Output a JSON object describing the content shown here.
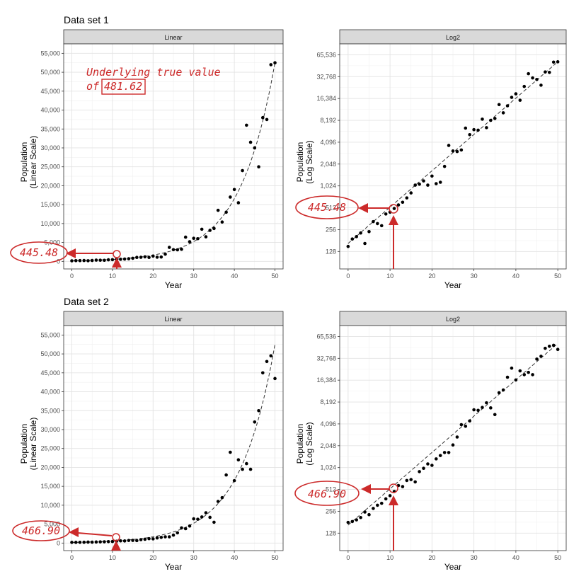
{
  "sections": [
    {
      "title": "Data set 1"
    },
    {
      "title": "Data set 2"
    }
  ],
  "annotations": {
    "note_line1": "Underlying true value",
    "note_line2_prefix": "of",
    "note_value": "481.62",
    "ds1_estimate": "445.48",
    "ds2_estimate": "466.90",
    "color": "#cc2a2a"
  },
  "chart_data": [
    {
      "type": "scatter",
      "dataset": "Data set 1",
      "facet": "Linear",
      "xlabel": "Year",
      "ylabel": [
        "Population",
        "(Linear Scale)"
      ],
      "xlim": [
        -2,
        52
      ],
      "ylim": [
        -2000,
        57500
      ],
      "scale": "linear",
      "xticks": [
        0,
        10,
        20,
        30,
        40,
        50
      ],
      "yticks": [
        0,
        5000,
        10000,
        15000,
        20000,
        25000,
        30000,
        35000,
        40000,
        45000,
        50000,
        55000
      ],
      "ytick_labels": [
        "0",
        "5,000",
        "10,000",
        "15,000",
        "20,000",
        "25,000",
        "30,000",
        "35,000",
        "40,000",
        "45,000",
        "50,000",
        "55,000"
      ],
      "trend": {
        "style": "dashed",
        "start": 165,
        "end": 52500
      },
      "grid": true,
      "x": [
        0,
        1,
        2,
        3,
        4,
        5,
        6,
        7,
        8,
        9,
        10,
        11,
        12,
        13,
        14,
        15,
        16,
        17,
        18,
        19,
        20,
        21,
        22,
        23,
        24,
        25,
        26,
        27,
        28,
        29,
        30,
        31,
        32,
        33,
        34,
        35,
        36,
        37,
        38,
        39,
        40,
        41,
        42,
        43,
        44,
        45,
        46,
        47,
        48,
        49,
        50
      ],
      "y": [
        150,
        190,
        205,
        230,
        165,
        240,
        330,
        310,
        290,
        420,
        445,
        500,
        560,
        610,
        700,
        820,
        1050,
        1080,
        1200,
        1050,
        1400,
        1100,
        1150,
        1900,
        3700,
        3100,
        3050,
        3200,
        6400,
        5200,
        6100,
        6000,
        8500,
        6500,
        8200,
        8700,
        13500,
        10400,
        13000,
        17000,
        19000,
        15500,
        24000,
        36000,
        31500,
        30000,
        25000,
        38000,
        37500,
        52000,
        52500
      ]
    },
    {
      "type": "scatter",
      "dataset": "Data set 1",
      "facet": "Log2",
      "xlabel": "Year",
      "ylabel": [
        "Population",
        "(Log Scale)"
      ],
      "xlim": [
        -2,
        52
      ],
      "scale": "log2",
      "ylim_log2": [
        6.2,
        16.5
      ],
      "xticks": [
        0,
        10,
        20,
        30,
        40,
        50
      ],
      "yticks": [
        128,
        256,
        512,
        1024,
        2048,
        4096,
        8192,
        16384,
        32768,
        65536
      ],
      "ytick_labels": [
        "128",
        "256",
        "512",
        "1,024",
        "2,048",
        "4,096",
        "8,192",
        "16,384",
        "32,768",
        "65,536"
      ],
      "trend": {
        "style": "dashed",
        "start": 165,
        "end": 52500
      },
      "grid": true,
      "x": [
        0,
        1,
        2,
        3,
        4,
        5,
        6,
        7,
        8,
        9,
        10,
        11,
        12,
        13,
        14,
        15,
        16,
        17,
        18,
        19,
        20,
        21,
        22,
        23,
        24,
        25,
        26,
        27,
        28,
        29,
        30,
        31,
        32,
        33,
        34,
        35,
        36,
        37,
        38,
        39,
        40,
        41,
        42,
        43,
        44,
        45,
        46,
        47,
        48,
        49,
        50
      ],
      "y": [
        150,
        190,
        205,
        230,
        165,
        240,
        330,
        310,
        290,
        420,
        445,
        500,
        560,
        610,
        700,
        820,
        1050,
        1080,
        1200,
        1050,
        1400,
        1100,
        1150,
        1900,
        3700,
        3100,
        3050,
        3200,
        6400,
        5200,
        6100,
        6000,
        8500,
        6500,
        8200,
        8700,
        13500,
        10400,
        13000,
        17000,
        19000,
        15500,
        24000,
        36000,
        31500,
        30000,
        25000,
        38000,
        37500,
        52000,
        52500
      ]
    },
    {
      "type": "scatter",
      "dataset": "Data set 2",
      "facet": "Linear",
      "xlabel": "Year",
      "ylabel": [
        "Population",
        "(Linear Scale)"
      ],
      "xlim": [
        -2,
        52
      ],
      "ylim": [
        -2000,
        57500
      ],
      "scale": "linear",
      "xticks": [
        0,
        10,
        20,
        30,
        40,
        50
      ],
      "yticks": [
        0,
        5000,
        10000,
        15000,
        20000,
        25000,
        30000,
        35000,
        40000,
        45000,
        50000,
        55000
      ],
      "ytick_labels": [
        "0",
        "5,000",
        "10,000",
        "15,000",
        "20,000",
        "25,000",
        "30,000",
        "35,000",
        "40,000",
        "45,000",
        "50,000",
        "55,000"
      ],
      "trend": {
        "style": "dashed",
        "start": 165,
        "end": 52500
      },
      "grid": true,
      "x": [
        0,
        1,
        2,
        3,
        4,
        5,
        6,
        7,
        8,
        9,
        10,
        11,
        12,
        13,
        14,
        15,
        16,
        17,
        18,
        19,
        20,
        21,
        22,
        23,
        24,
        25,
        26,
        27,
        28,
        29,
        30,
        31,
        32,
        33,
        34,
        35,
        36,
        37,
        38,
        39,
        40,
        41,
        42,
        43,
        44,
        45,
        46,
        47,
        48,
        49,
        50
      ],
      "y": [
        180,
        185,
        195,
        210,
        250,
        230,
        280,
        310,
        330,
        380,
        420,
        480,
        580,
        560,
        680,
        700,
        650,
        900,
        1000,
        1150,
        1100,
        1350,
        1500,
        1650,
        1650,
        2100,
        2700,
        4000,
        3800,
        4500,
        6400,
        6300,
        6900,
        8000,
        6800,
        5500,
        11000,
        12000,
        18000,
        24000,
        16500,
        22000,
        19500,
        21000,
        19500,
        32000,
        35000,
        45000,
        48000,
        49500,
        43500
      ]
    },
    {
      "type": "scatter",
      "dataset": "Data set 2",
      "facet": "Log2",
      "xlabel": "Year",
      "ylabel": [
        "Population",
        "(Log Scale)"
      ],
      "xlim": [
        -2,
        52
      ],
      "scale": "log2",
      "ylim_log2": [
        6.2,
        16.5
      ],
      "xticks": [
        0,
        10,
        20,
        30,
        40,
        50
      ],
      "yticks": [
        128,
        256,
        512,
        1024,
        2048,
        4096,
        8192,
        16384,
        32768,
        65536
      ],
      "ytick_labels": [
        "128",
        "256",
        "512",
        "1,024",
        "2,048",
        "4,096",
        "8,192",
        "16,384",
        "32,768",
        "65,536"
      ],
      "trend": {
        "style": "dashed",
        "start": 165,
        "end": 52500
      },
      "grid": true,
      "x": [
        0,
        1,
        2,
        3,
        4,
        5,
        6,
        7,
        8,
        9,
        10,
        11,
        12,
        13,
        14,
        15,
        16,
        17,
        18,
        19,
        20,
        21,
        22,
        23,
        24,
        25,
        26,
        27,
        28,
        29,
        30,
        31,
        32,
        33,
        34,
        35,
        36,
        37,
        38,
        39,
        40,
        41,
        42,
        43,
        44,
        45,
        46,
        47,
        48,
        49,
        50
      ],
      "y": [
        180,
        185,
        195,
        210,
        250,
        230,
        280,
        310,
        330,
        380,
        420,
        480,
        580,
        560,
        680,
        700,
        650,
        900,
        1000,
        1150,
        1100,
        1350,
        1500,
        1650,
        1650,
        2100,
        2700,
        4000,
        3800,
        4500,
        6400,
        6300,
        6900,
        8000,
        6800,
        5500,
        11000,
        12000,
        18000,
        24000,
        16500,
        22000,
        19500,
        21000,
        19500,
        32000,
        35000,
        45000,
        48000,
        49500,
        43500
      ]
    }
  ]
}
